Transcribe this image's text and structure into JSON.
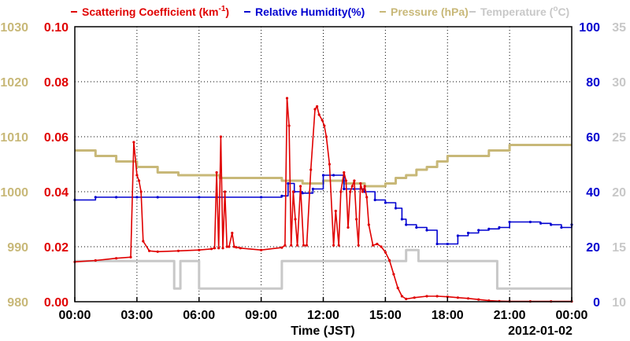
{
  "chart_data": {
    "type": "line",
    "xlabel": "Time (JST)",
    "date_label": "2012-01-02",
    "x_ticks": [
      "00:00",
      "03:00",
      "06:00",
      "09:00",
      "12:00",
      "15:00",
      "18:00",
      "21:00",
      "00:00"
    ],
    "xlim_hours": [
      0,
      24
    ],
    "grid": true,
    "legend_position": "top",
    "axes": {
      "scattering": {
        "ticks": [
          "0.00",
          "0.02",
          "0.04",
          "0.06",
          "0.08",
          "0.10"
        ],
        "ylim": [
          0,
          0.1
        ],
        "color": "#e00000"
      },
      "pressure": {
        "ticks": [
          "980",
          "990",
          "1000",
          "1010",
          "1020",
          "1030"
        ],
        "ylim": [
          980,
          1030
        ],
        "color": "#c8b878"
      },
      "humidity": {
        "ticks": [
          "0",
          "20",
          "40",
          "60",
          "80",
          "100"
        ],
        "ylim": [
          0,
          100
        ],
        "color": "#0000d0"
      },
      "temperature": {
        "ticks": [
          "10",
          "15",
          "20",
          "25",
          "30",
          "35"
        ],
        "ylim": [
          10,
          35
        ],
        "color": "#c8c8c8"
      }
    },
    "series": [
      {
        "key": "scattering",
        "name": "Scattering Coefficient (km",
        "unit_sup": "-1",
        "name_suffix": ")",
        "color": "#e00000",
        "axis": "scattering",
        "x": [
          0,
          1.0,
          2.0,
          2.7,
          2.85,
          3.0,
          3.1,
          3.2,
          3.3,
          3.6,
          4.0,
          5.0,
          6.0,
          6.6,
          6.75,
          6.85,
          6.95,
          7.05,
          7.15,
          7.25,
          7.35,
          7.45,
          7.6,
          7.7,
          7.8,
          8.0,
          9.0,
          10.0,
          10.15,
          10.25,
          10.35,
          10.45,
          10.55,
          10.65,
          10.75,
          10.9,
          11.05,
          11.2,
          11.4,
          11.6,
          11.7,
          11.8,
          11.95,
          12.05,
          12.15,
          12.3,
          12.5,
          12.6,
          12.75,
          12.85,
          13.0,
          13.1,
          13.2,
          13.3,
          13.4,
          13.5,
          13.6,
          13.7,
          13.8,
          13.9,
          14.0,
          14.1,
          14.2,
          14.4,
          14.6,
          14.8,
          15.0,
          15.2,
          15.4,
          15.6,
          15.8,
          16.0,
          16.4,
          17.0,
          17.5,
          18.0,
          18.5,
          19.0,
          19.5,
          20.0,
          20.5,
          21.0,
          22.0,
          23.0,
          24.0
        ],
        "values": [
          0.0145,
          0.015,
          0.0158,
          0.0162,
          0.058,
          0.046,
          0.044,
          0.04,
          0.022,
          0.0185,
          0.0182,
          0.0185,
          0.0188,
          0.0192,
          0.0195,
          0.047,
          0.0195,
          0.06,
          0.0195,
          0.04,
          0.02,
          0.02,
          0.025,
          0.02,
          0.0198,
          0.0195,
          0.0188,
          0.0197,
          0.0205,
          0.074,
          0.064,
          0.0205,
          0.04,
          0.03,
          0.0205,
          0.042,
          0.0205,
          0.0205,
          0.048,
          0.07,
          0.071,
          0.068,
          0.066,
          0.064,
          0.06,
          0.05,
          0.0205,
          0.033,
          0.0205,
          0.04,
          0.047,
          0.044,
          0.027,
          0.04,
          0.042,
          0.044,
          0.03,
          0.0205,
          0.043,
          0.04,
          0.042,
          0.038,
          0.028,
          0.0205,
          0.021,
          0.02,
          0.018,
          0.015,
          0.01,
          0.005,
          0.002,
          0.001,
          0.0015,
          0.002,
          0.002,
          0.0018,
          0.0015,
          0.0012,
          0.0008,
          0.0004,
          0.0002,
          0.0001,
          0.0001,
          0.0001,
          0.0001
        ]
      },
      {
        "key": "humidity",
        "name": "Relative Humidity(%)",
        "color": "#0000d0",
        "axis": "humidity",
        "x": [
          0,
          1.0,
          2.0,
          3.0,
          4.0,
          6.0,
          9.0,
          10.0,
          10.3,
          10.6,
          11.0,
          11.5,
          12.0,
          12.5,
          13.0,
          13.5,
          14.0,
          14.5,
          15.0,
          15.5,
          15.8,
          16.0,
          16.5,
          17.0,
          17.5,
          18.0,
          18.5,
          19.0,
          19.5,
          20.0,
          20.5,
          21.0,
          22.0,
          22.5,
          23.0,
          23.5,
          24.0
        ],
        "values": [
          37,
          38,
          38,
          38,
          38,
          38,
          38,
          38.5,
          43,
          40,
          39.5,
          41,
          46,
          46,
          41,
          41,
          40,
          37,
          36,
          34,
          30,
          28,
          27,
          26,
          21,
          21,
          24,
          25,
          26,
          26.5,
          27,
          29,
          29,
          28.5,
          28,
          27,
          28
        ]
      },
      {
        "key": "pressure",
        "name": "Pressure (hPa)",
        "color": "#c8b878",
        "axis": "pressure",
        "x": [
          0,
          0.8,
          1.0,
          1.8,
          2.0,
          3.0,
          4.0,
          5.0,
          6.0,
          7.0,
          8.0,
          9.0,
          10.0,
          11.0,
          12.0,
          13.0,
          14.0,
          15.0,
          15.5,
          16.0,
          16.5,
          17.0,
          17.5,
          18.0,
          19.0,
          20.0,
          21.0,
          24.0
        ],
        "values": [
          1007.5,
          1007.5,
          1006.5,
          1006.5,
          1005.5,
          1004.5,
          1003.5,
          1003,
          1003,
          1002.5,
          1002.5,
          1002.5,
          1002,
          1001.5,
          1002,
          1001.5,
          1001,
          1001.5,
          1002.5,
          1003,
          1004,
          1004.5,
          1005.5,
          1006.5,
          1006.5,
          1007.5,
          1008.5,
          1008.5
        ]
      },
      {
        "key": "temperature",
        "name": "Temperature (",
        "unit_sup": "o",
        "name_suffix": "C)",
        "color": "#c8c8c8",
        "axis": "temperature",
        "x": [
          0,
          4.8,
          4.8,
          5.1,
          5.1,
          6.0,
          6.0,
          10.0,
          10.0,
          16.0,
          16.0,
          16.6,
          16.6,
          20.4,
          20.4,
          24.0
        ],
        "values": [
          13.7,
          13.7,
          11.2,
          11.2,
          13.7,
          13.7,
          11.2,
          11.2,
          13.7,
          13.7,
          14.7,
          14.7,
          13.7,
          13.7,
          11.2,
          11.2
        ]
      }
    ]
  }
}
